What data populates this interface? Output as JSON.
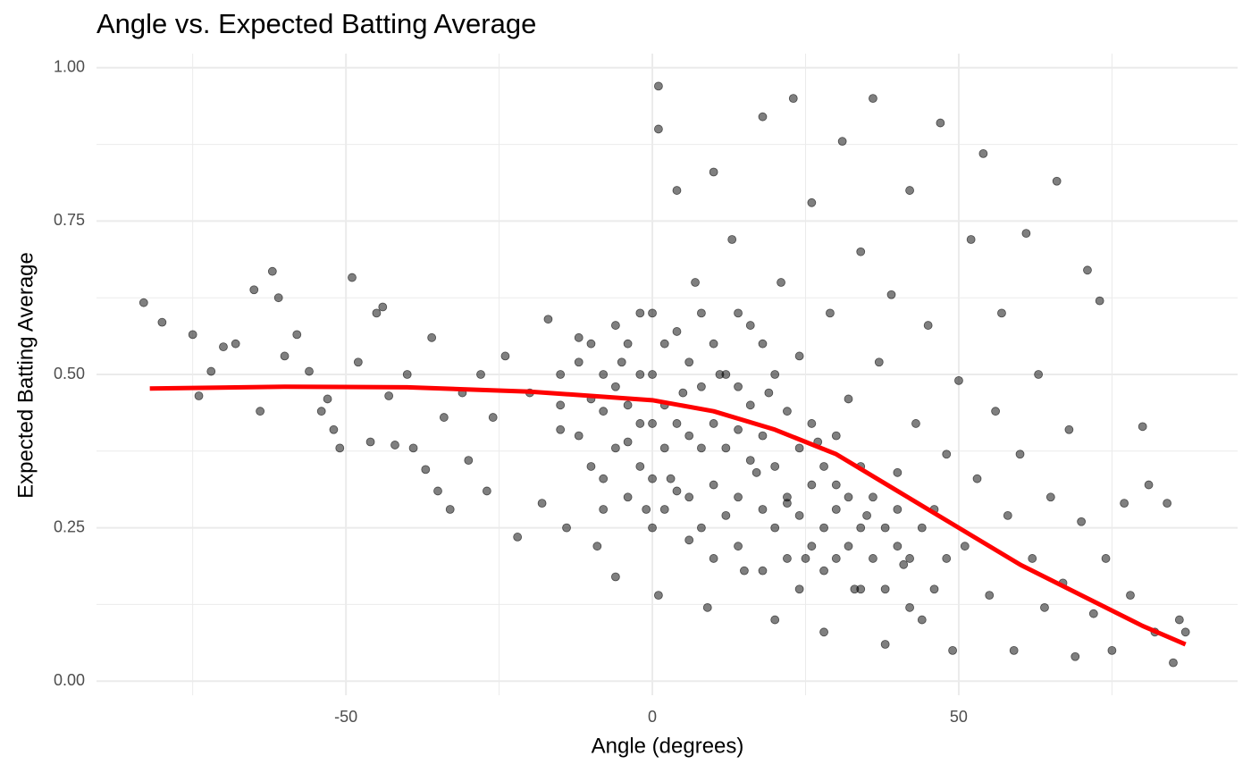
{
  "chart_data": {
    "type": "scatter",
    "title": "Angle vs. Expected Batting Average",
    "x_label": "Angle (degrees)",
    "y_label": "Expected Batting Average",
    "xlim": [
      -90.7,
      95.5
    ],
    "ylim": [
      -0.023,
      1.023
    ],
    "xticks": [
      -50,
      0,
      50
    ],
    "yticks": [
      {
        "value": 0,
        "label": "0.00"
      },
      {
        "value": 0.25,
        "label": "0.25"
      },
      {
        "value": 0.5,
        "label": "0.50"
      },
      {
        "value": 0.75,
        "label": "0.75"
      },
      {
        "value": 1,
        "label": "1.00"
      }
    ],
    "x_minor_ticks": [
      -75,
      -25,
      25,
      75
    ],
    "y_minor_ticks": [
      0.125,
      0.375,
      0.625,
      0.875
    ],
    "grid": true,
    "color": "#000000",
    "x": [
      -83,
      -80,
      -75,
      -74,
      -72,
      -70,
      -68,
      -65,
      -64,
      -62,
      -61,
      -60,
      -58,
      -56,
      -54,
      -53,
      -52,
      -51,
      -49,
      -48,
      -46,
      -45,
      -44,
      -43,
      -42,
      -40,
      -39,
      -37,
      -36,
      -35,
      -34,
      -33,
      -31,
      -30,
      -28,
      -27,
      -26,
      -24,
      -22,
      -20,
      -18,
      -17,
      -15,
      -14,
      -12,
      -10,
      -9,
      -8,
      -6,
      -5,
      -4,
      -2,
      -1,
      0,
      1,
      1,
      1,
      2,
      3,
      4,
      5,
      6,
      7,
      8,
      9,
      10,
      11,
      12,
      13,
      14,
      15,
      16,
      17,
      18,
      19,
      20,
      21,
      22,
      23,
      24,
      25,
      26,
      27,
      28,
      29,
      30,
      31,
      32,
      33,
      34,
      35,
      36,
      37,
      38,
      39,
      40,
      41,
      42,
      43,
      44,
      45,
      46,
      47,
      48,
      49,
      50,
      51,
      52,
      53,
      54,
      55,
      56,
      57,
      58,
      59,
      60,
      61,
      62,
      63,
      64,
      65,
      66,
      67,
      68,
      69,
      70,
      71,
      72,
      73,
      74,
      75,
      77,
      78,
      80,
      81,
      82,
      84,
      85,
      86,
      87,
      -15,
      -15,
      -12,
      -12,
      -10,
      -10,
      -8,
      -8,
      -8,
      -6,
      -6,
      -6,
      -4,
      -4,
      -4,
      -2,
      -2,
      -2,
      0,
      0,
      0,
      0,
      2,
      2,
      2,
      4,
      4,
      4,
      6,
      6,
      6,
      8,
      8,
      8,
      10,
      10,
      10,
      10,
      12,
      12,
      14,
      14,
      14,
      14,
      16,
      16,
      18,
      18,
      18,
      18,
      20,
      20,
      20,
      22,
      22,
      22,
      24,
      24,
      24,
      26,
      26,
      26,
      28,
      28,
      28,
      30,
      30,
      30,
      32,
      32,
      34,
      34,
      34,
      36,
      36,
      38,
      38,
      40,
      40,
      42,
      42,
      44,
      46,
      48
    ],
    "values": [
      0.617,
      0.585,
      0.565,
      0.465,
      0.505,
      0.545,
      0.55,
      0.638,
      0.44,
      0.668,
      0.625,
      0.53,
      0.565,
      0.505,
      0.44,
      0.46,
      0.41,
      0.38,
      0.658,
      0.52,
      0.39,
      0.6,
      0.61,
      0.465,
      0.385,
      0.5,
      0.38,
      0.345,
      0.56,
      0.31,
      0.43,
      0.28,
      0.47,
      0.36,
      0.5,
      0.31,
      0.43,
      0.53,
      0.235,
      0.47,
      0.29,
      0.59,
      0.41,
      0.25,
      0.56,
      0.46,
      0.22,
      0.33,
      0.17,
      0.52,
      0.39,
      0.6,
      0.28,
      0.42,
      0.97,
      0.9,
      0.14,
      0.55,
      0.33,
      0.8,
      0.47,
      0.23,
      0.65,
      0.38,
      0.12,
      0.83,
      0.5,
      0.27,
      0.72,
      0.41,
      0.18,
      0.58,
      0.34,
      0.92,
      0.47,
      0.1,
      0.65,
      0.29,
      0.95,
      0.53,
      0.2,
      0.78,
      0.39,
      0.08,
      0.6,
      0.32,
      0.88,
      0.46,
      0.15,
      0.7,
      0.27,
      0.95,
      0.52,
      0.06,
      0.63,
      0.34,
      0.19,
      0.8,
      0.42,
      0.1,
      0.58,
      0.28,
      0.91,
      0.37,
      0.05,
      0.49,
      0.22,
      0.72,
      0.33,
      0.86,
      0.14,
      0.44,
      0.6,
      0.27,
      0.05,
      0.37,
      0.73,
      0.2,
      0.5,
      0.12,
      0.3,
      0.815,
      0.16,
      0.41,
      0.04,
      0.26,
      0.67,
      0.11,
      0.62,
      0.2,
      0.05,
      0.29,
      0.14,
      0.415,
      0.32,
      0.08,
      0.29,
      0.03,
      0.1,
      0.08,
      0.5,
      0.45,
      0.52,
      0.4,
      0.55,
      0.35,
      0.5,
      0.44,
      0.28,
      0.58,
      0.48,
      0.38,
      0.55,
      0.45,
      0.3,
      0.5,
      0.42,
      0.35,
      0.6,
      0.5,
      0.33,
      0.25,
      0.45,
      0.38,
      0.28,
      0.57,
      0.42,
      0.31,
      0.52,
      0.4,
      0.3,
      0.6,
      0.48,
      0.25,
      0.55,
      0.42,
      0.32,
      0.2,
      0.5,
      0.38,
      0.6,
      0.48,
      0.3,
      0.22,
      0.45,
      0.36,
      0.55,
      0.4,
      0.28,
      0.18,
      0.5,
      0.35,
      0.25,
      0.44,
      0.3,
      0.2,
      0.38,
      0.27,
      0.15,
      0.42,
      0.32,
      0.22,
      0.35,
      0.25,
      0.18,
      0.4,
      0.28,
      0.2,
      0.3,
      0.22,
      0.35,
      0.25,
      0.15,
      0.3,
      0.2,
      0.25,
      0.15,
      0.28,
      0.22,
      0.2,
      0.12,
      0.25,
      0.15,
      0.2
    ],
    "trend": {
      "color": "#ff0000",
      "x": [
        -82,
        -60,
        -40,
        -20,
        0,
        10,
        20,
        30,
        40,
        50,
        60,
        70,
        80,
        87
      ],
      "values": [
        0.477,
        0.48,
        0.479,
        0.472,
        0.458,
        0.44,
        0.41,
        0.37,
        0.31,
        0.25,
        0.19,
        0.14,
        0.09,
        0.06
      ]
    }
  }
}
